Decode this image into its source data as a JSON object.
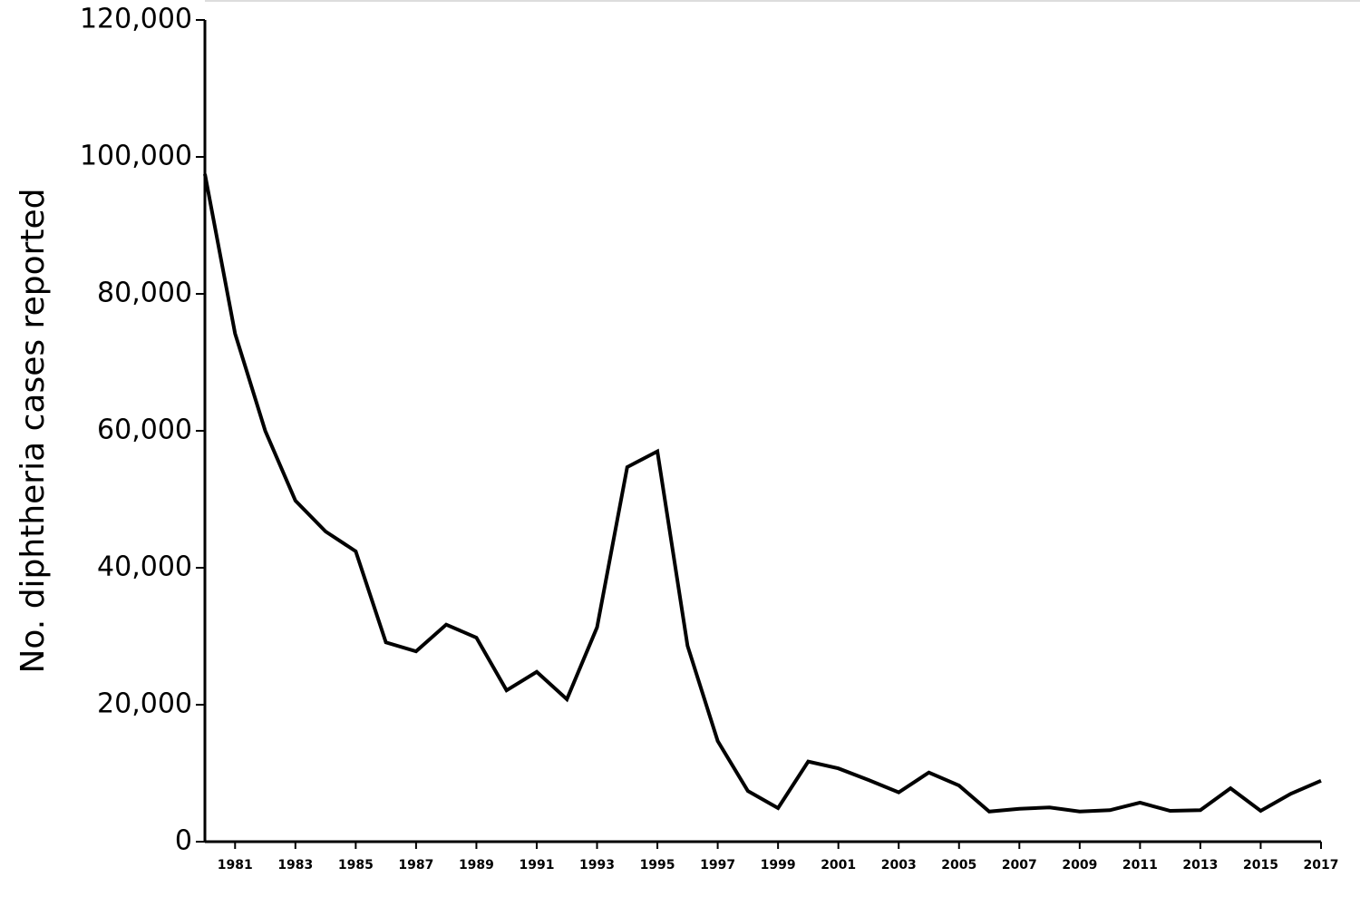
{
  "chart_data": {
    "type": "line",
    "y_label": "No. diphtheria cases reported",
    "x": [
      1980,
      1981,
      1982,
      1983,
      1984,
      1985,
      1986,
      1987,
      1988,
      1989,
      1990,
      1991,
      1992,
      1993,
      1994,
      1995,
      1996,
      1997,
      1998,
      1999,
      2000,
      2001,
      2002,
      2003,
      2004,
      2005,
      2006,
      2007,
      2008,
      2009,
      2010,
      2011,
      2012,
      2013,
      2014,
      2015,
      2016,
      2017
    ],
    "series": [
      {
        "color": "#000000",
        "values": [
          97500,
          74200,
          60000,
          49800,
          45300,
          42400,
          29100,
          27800,
          31700,
          29800,
          22100,
          24800,
          20800,
          31300,
          54700,
          57000,
          28600,
          14700,
          7400,
          4900,
          11700,
          10700,
          9000,
          7200,
          10100,
          8200,
          4400,
          4800,
          5000,
          4400,
          4600,
          5700,
          4500,
          4600,
          7800,
          4500,
          7000,
          8900
        ]
      }
    ],
    "xlim": [
      1980,
      2017
    ],
    "xticks": [
      1981,
      1983,
      1985,
      1987,
      1989,
      1991,
      1993,
      1995,
      1997,
      1999,
      2001,
      2003,
      2005,
      2007,
      2009,
      2011,
      2013,
      2015,
      2017
    ],
    "ylim": [
      0,
      120000
    ],
    "yticks": [
      0,
      {
        "value": 20000,
        "label": "20,000"
      },
      {
        "value": 40000,
        "label": "40,000"
      },
      {
        "value": 60000,
        "label": "60,000"
      },
      {
        "value": 80000,
        "label": "80,000"
      },
      {
        "value": 100000,
        "label": "100,000"
      },
      {
        "value": 120000,
        "label": "120,000"
      }
    ],
    "grid": false
  }
}
